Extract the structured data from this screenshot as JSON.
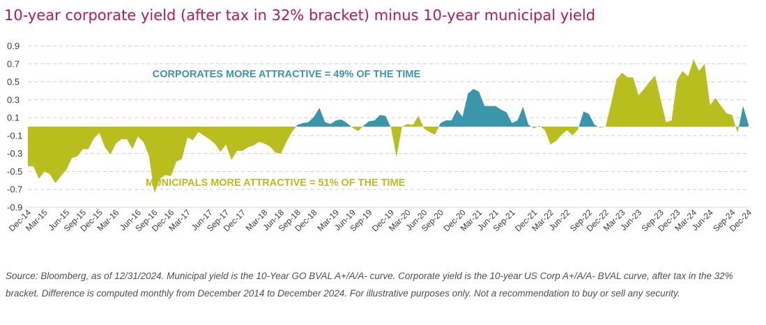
{
  "title": "10-year corporate yield (after tax in 32% bracket) minus 10-year municipal yield",
  "source": "Source: Bloomberg, as of 12/31/2024. Municipal yield is the 10-Year GO BVAL A+/A/A- curve. Corporate yield is the 10-year US Corp A+/A/A- BVAL curve, after tax in the 32% bracket. Difference is computed monthly from December 2014 to December 2024. For illustrative purposes only. Not a recommendation to buy or sell any security.",
  "colors": {
    "positive": "#3a97ab",
    "negative": "#b8be1e",
    "title": "#c0145e",
    "grid": "#d0d0d0"
  },
  "chart_data": {
    "type": "area",
    "x_start": "Dec-14",
    "x_end": "Dec-24",
    "y_range": [
      -0.9,
      0.9
    ],
    "y_ticks": [
      0.9,
      0.7,
      0.5,
      0.3,
      0.1,
      -0.1,
      -0.3,
      -0.5,
      -0.7,
      -0.9
    ],
    "y_tick_labels": [
      "0.9",
      "0.7",
      "0.5",
      "0.3",
      "0.1",
      "-0.1",
      "-0.3",
      "-0.5",
      "-0.7",
      "-0.9"
    ],
    "grid": "horizontal-dashed",
    "x_tick_labels": [
      "Dec-14",
      "Mar-15",
      "Jun-15",
      "Sep-15",
      "Dec-15",
      "Mar-16",
      "Jun-16",
      "Sep-16",
      "Dec-16",
      "Mar-17",
      "Jun-17",
      "Sep-17",
      "Dec-17",
      "Mar-18",
      "Jun-18",
      "Sep-18",
      "Dec-18",
      "Mar-19",
      "Jun-19",
      "Sep-19",
      "Dec-19",
      "Mar-20",
      "Jun-20",
      "Sep-20",
      "Dec-20",
      "Mar-21",
      "Jun-21",
      "Sep-21",
      "Dec-21",
      "Mar-22",
      "Jun-22",
      "Sep-22",
      "Dec-22",
      "Mar-23",
      "Jun-23",
      "Sep-23",
      "Dec-23",
      "Mar-24",
      "Jun-24",
      "Sep-24",
      "Dec-24"
    ],
    "values": [
      -0.44,
      -0.44,
      -0.58,
      -0.5,
      -0.53,
      -0.63,
      -0.55,
      -0.48,
      -0.35,
      -0.33,
      -0.25,
      -0.25,
      -0.13,
      -0.07,
      -0.23,
      -0.31,
      -0.19,
      -0.14,
      -0.14,
      -0.25,
      -0.11,
      -0.17,
      -0.32,
      -0.74,
      -0.58,
      -0.54,
      -0.55,
      -0.39,
      -0.36,
      -0.12,
      -0.15,
      -0.06,
      -0.1,
      -0.14,
      -0.19,
      -0.28,
      -0.2,
      -0.37,
      -0.27,
      -0.27,
      -0.23,
      -0.21,
      -0.17,
      -0.19,
      -0.22,
      -0.29,
      -0.3,
      -0.17,
      -0.06,
      0.02,
      0.04,
      0.05,
      0.11,
      0.21,
      0.05,
      0.03,
      0.07,
      0.08,
      0.04,
      -0.01,
      -0.05,
      0.01,
      0.06,
      0.07,
      0.13,
      0.12,
      -0.01,
      -0.34,
      0.0,
      0.03,
      0.02,
      0.12,
      -0.02,
      -0.06,
      -0.09,
      0.04,
      0.07,
      0.07,
      0.19,
      0.11,
      0.37,
      0.42,
      0.39,
      0.23,
      0.23,
      0.23,
      0.19,
      0.16,
      0.04,
      0.07,
      0.22,
      0.02,
      -0.02,
      0.01,
      -0.04,
      -0.2,
      -0.16,
      -0.09,
      -0.04,
      -0.1,
      -0.03,
      0.17,
      0.14,
      0.02,
      -0.01,
      0.0,
      0.25,
      0.53,
      0.6,
      0.55,
      0.55,
      0.35,
      0.42,
      0.5,
      0.57,
      0.31,
      0.05,
      0.07,
      0.52,
      0.62,
      0.56,
      0.75,
      0.62,
      0.7,
      0.24,
      0.32,
      0.23,
      0.15,
      0.13,
      -0.07,
      0.23,
      0.02
    ],
    "annotations": [
      {
        "text": "CORPORATES MORE ATTRACTIVE = 49% OF THE TIME",
        "x_index": 47,
        "y": 0.59,
        "color": "#3a97ab"
      },
      {
        "text": "MUNICIPALS MORE ATTRACTIVE = 51% OF THE TIME",
        "x_index": 45,
        "y": -0.62,
        "color": "#b8be1e"
      }
    ]
  }
}
